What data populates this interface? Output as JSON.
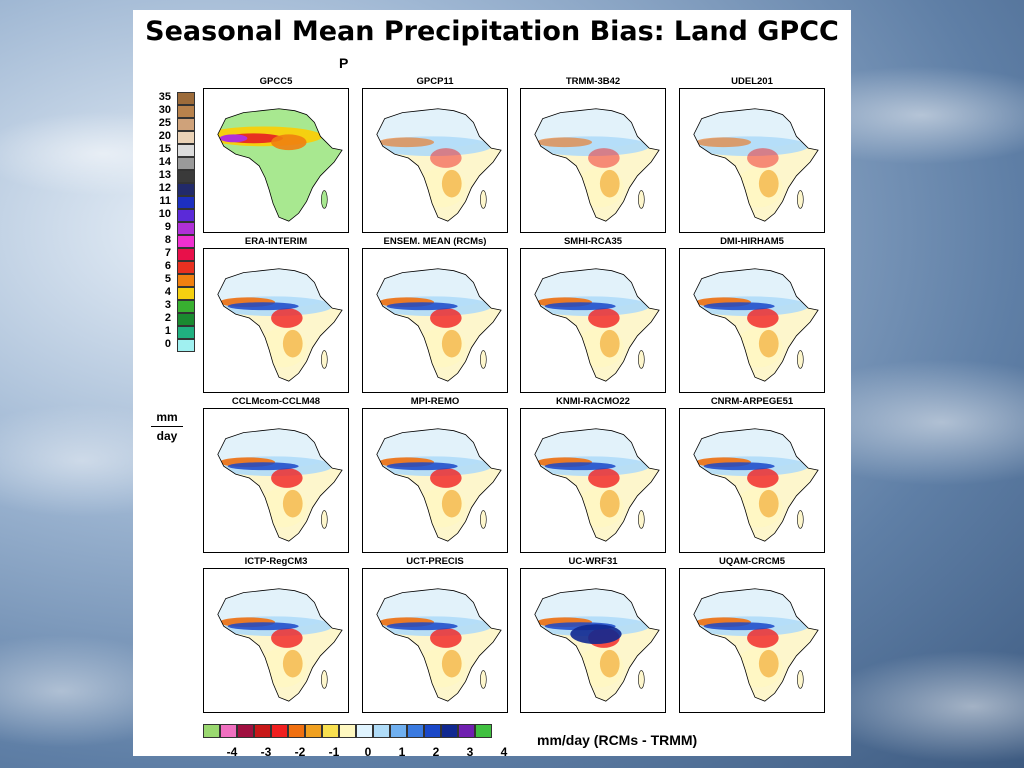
{
  "title": "Seasonal Mean Precipitation Bias: Land GPCC",
  "subtitle_fragment": "P",
  "left_colorbar": {
    "labels": [
      "35",
      "30",
      "25",
      "20",
      "15",
      "14",
      "13",
      "12",
      "11",
      "10",
      "9",
      "8",
      "7",
      "6",
      "5",
      "4",
      "3",
      "2",
      "1",
      "0"
    ],
    "colors": [
      "#9c6b3a",
      "#b8824c",
      "#cfa27a",
      "#ead2b6",
      "#dcdcdc",
      "#9a9a9a",
      "#3a3a3a",
      "#222a6a",
      "#1d2fc0",
      "#5b2ad8",
      "#b030d8",
      "#f030d0",
      "#e8104a",
      "#e83020",
      "#f08010",
      "#f5d010",
      "#38b030",
      "#1a8a30",
      "#20b080",
      "#a0f0f0"
    ],
    "units_top": "mm",
    "units_bottom": "day"
  },
  "panels": [
    {
      "title": "GPCC5"
    },
    {
      "title": "GPCP11"
    },
    {
      "title": "TRMM-3B42"
    },
    {
      "title": "UDEL201"
    },
    {
      "title": "ERA-INTERIM"
    },
    {
      "title": "ENSEM. MEAN (RCMs)"
    },
    {
      "title": "SMHI-RCA35"
    },
    {
      "title": "DMI-HIRHAM5"
    },
    {
      "title": "CCLMcom-CCLM48"
    },
    {
      "title": "MPI-REMO"
    },
    {
      "title": "KNMI-RACMO22"
    },
    {
      "title": "CNRM-ARPEGE51"
    },
    {
      "title": "ICTP-RegCM3"
    },
    {
      "title": "UCT-PRECIS"
    },
    {
      "title": "UC-WRF31"
    },
    {
      "title": "UQAM-CRCM5"
    }
  ],
  "bottom_colorbar": {
    "colors": [
      "#9ad870",
      "#f070c0",
      "#a01040",
      "#c81818",
      "#f02020",
      "#f07010",
      "#f0a020",
      "#f8e050",
      "#fff8c0",
      "#e0f4ff",
      "#b0dcf8",
      "#70b0f0",
      "#3a7ae0",
      "#1a48c8",
      "#102890",
      "#7020b0",
      "#40c040"
    ],
    "tick_labels": [
      "-4",
      "-3",
      "-2",
      "-1",
      "0",
      "1",
      "2",
      "3",
      "4"
    ],
    "caption": "mm/day  (RCMs - TRMM)"
  }
}
